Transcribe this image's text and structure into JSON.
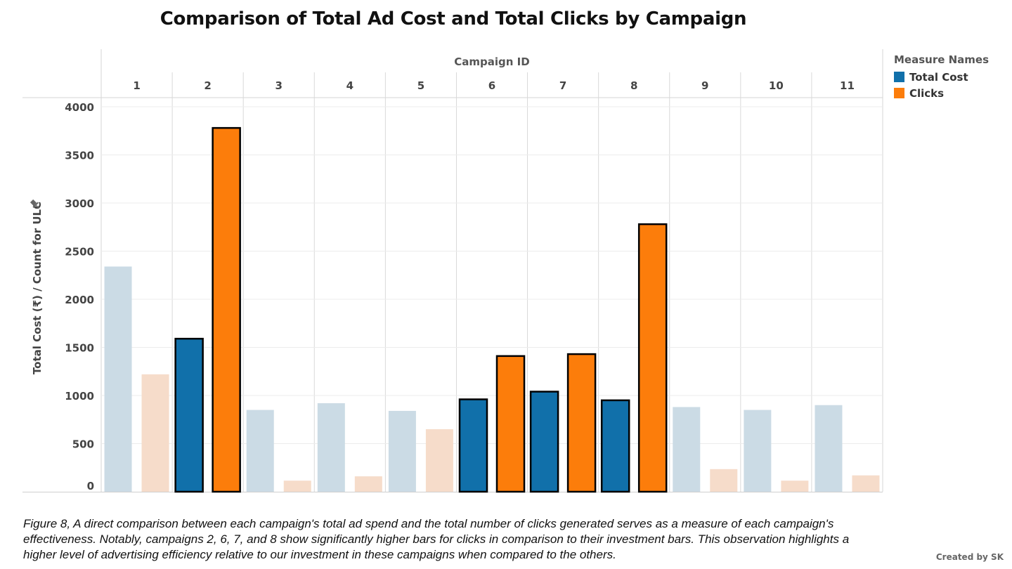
{
  "chart_data": {
    "type": "bar",
    "title": "Comparison of Total Ad Cost and Total Clicks by Campaign",
    "column_header": "Campaign ID",
    "categories": [
      "1",
      "2",
      "3",
      "4",
      "5",
      "6",
      "7",
      "8",
      "9",
      "10",
      "11"
    ],
    "ylabel": "Total Cost (₹) / Count for ULC",
    "ylim": [
      0,
      4000
    ],
    "yticks": [
      0,
      500,
      1000,
      1500,
      2000,
      2500,
      3000,
      3500,
      4000
    ],
    "grid": true,
    "legend": {
      "title": "Measure Names",
      "placement": "top-right"
    },
    "highlighted_categories": [
      "2",
      "6",
      "7",
      "8"
    ],
    "series": [
      {
        "name": "Total Cost",
        "color": "#1170aa",
        "faded_color": "#cbdbe5",
        "values": [
          2340,
          1590,
          850,
          920,
          840,
          960,
          1040,
          950,
          880,
          850,
          900
        ]
      },
      {
        "name": "Clicks",
        "color": "#fc7d0b",
        "faded_color": "#f6dcca",
        "values": [
          1220,
          3780,
          115,
          160,
          650,
          1410,
          1430,
          2780,
          235,
          115,
          170
        ]
      }
    ]
  },
  "caption": "Figure 8, A direct comparison between each campaign's total ad spend and the total number of clicks generated serves as a measure of each campaign's effectiveness. Notably, campaigns 2, 6, 7, and 8 show significantly higher bars for clicks in comparison to their investment bars. This observation highlights a higher level of advertising efficiency relative to our investment in these campaigns when compared to the others.",
  "credit": "Created by SK",
  "pin_icon": "pin-icon"
}
